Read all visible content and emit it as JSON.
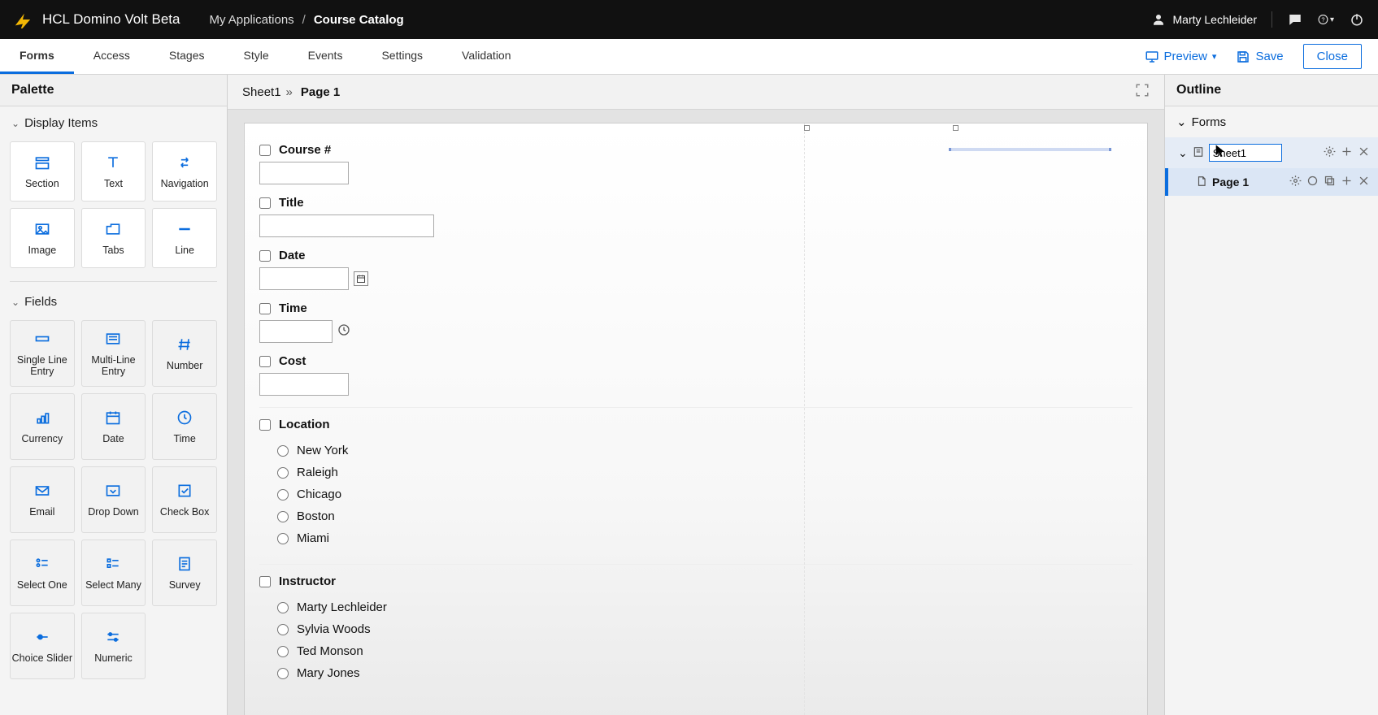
{
  "topbar": {
    "product": "HCL Domino Volt Beta",
    "breadcrumb_root": "My Applications",
    "breadcrumb_current": "Course Catalog",
    "user": "Marty Lechleider",
    "accent": "#0b6dde"
  },
  "tabs": {
    "items": [
      "Forms",
      "Access",
      "Stages",
      "Style",
      "Events",
      "Settings",
      "Validation"
    ],
    "active_index": 0,
    "preview": "Preview",
    "save": "Save",
    "close": "Close"
  },
  "palette": {
    "title": "Palette",
    "display_section": "Display Items",
    "fields_section": "Fields",
    "display_items": [
      {
        "label": "Section",
        "icon": "section"
      },
      {
        "label": "Text",
        "icon": "text"
      },
      {
        "label": "Navigation",
        "icon": "nav"
      },
      {
        "label": "Image",
        "icon": "image"
      },
      {
        "label": "Tabs",
        "icon": "tabs"
      },
      {
        "label": "Line",
        "icon": "line"
      }
    ],
    "field_items": [
      {
        "label": "Single Line Entry",
        "icon": "single"
      },
      {
        "label": "Multi-Line Entry",
        "icon": "multi"
      },
      {
        "label": "Number",
        "icon": "number"
      },
      {
        "label": "Currency",
        "icon": "currency"
      },
      {
        "label": "Date",
        "icon": "date"
      },
      {
        "label": "Time",
        "icon": "time"
      },
      {
        "label": "Email",
        "icon": "email"
      },
      {
        "label": "Drop Down",
        "icon": "dropdown"
      },
      {
        "label": "Check Box",
        "icon": "check"
      },
      {
        "label": "Select One",
        "icon": "selone"
      },
      {
        "label": "Select Many",
        "icon": "selmany"
      },
      {
        "label": "Survey",
        "icon": "survey"
      },
      {
        "label": "Choice Slider",
        "icon": "cslider"
      },
      {
        "label": "Numeric",
        "icon": "nslider"
      }
    ]
  },
  "canvas": {
    "crumb_sheet": "Sheet1",
    "crumb_page": "Page 1",
    "fields": {
      "course": {
        "label": "Course #"
      },
      "title": {
        "label": "Title"
      },
      "date": {
        "label": "Date"
      },
      "time": {
        "label": "Time"
      },
      "cost": {
        "label": "Cost"
      },
      "location": {
        "label": "Location",
        "options": [
          "New York",
          "Raleigh",
          "Chicago",
          "Boston",
          "Miami"
        ]
      },
      "instructor": {
        "label": "Instructor",
        "options": [
          "Marty Lechleider",
          "Sylvia Woods",
          "Ted Monson",
          "Mary Jones"
        ]
      }
    }
  },
  "outline": {
    "title": "Outline",
    "forms_label": "Forms",
    "sheet_value": "Sheet1",
    "page_label": "Page 1"
  }
}
